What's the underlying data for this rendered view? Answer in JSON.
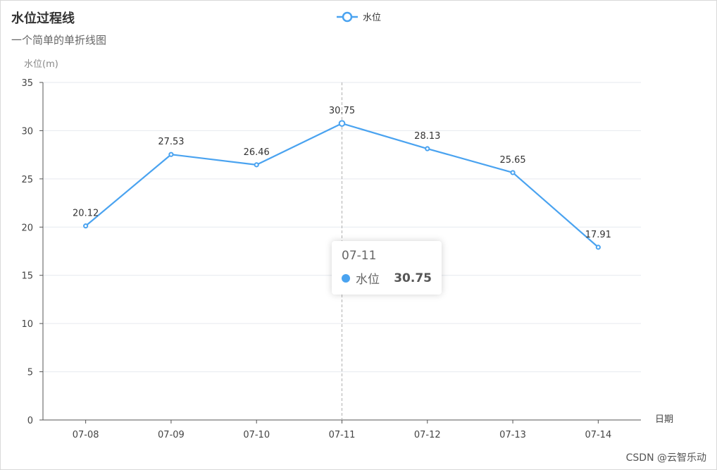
{
  "chart_data": {
    "type": "line",
    "title": "水位过程线",
    "subtitle": "一个简单的单折线图",
    "xlabel": "日期",
    "ylabel": "水位(m)",
    "categories": [
      "07-08",
      "07-09",
      "07-10",
      "07-11",
      "07-12",
      "07-13",
      "07-14"
    ],
    "series": [
      {
        "name": "水位",
        "values": [
          20.12,
          27.53,
          26.46,
          30.75,
          28.13,
          25.65,
          17.91
        ]
      }
    ],
    "ylim": [
      0,
      35
    ],
    "yticks": [
      0,
      5,
      10,
      15,
      20,
      25,
      30,
      35
    ],
    "grid": true,
    "legend": "top-center",
    "color": "#4aa3f0",
    "tooltip": {
      "category": "07-11",
      "series_name": "水位",
      "value": "30.75"
    }
  },
  "watermark": "CSDN @云智乐动"
}
